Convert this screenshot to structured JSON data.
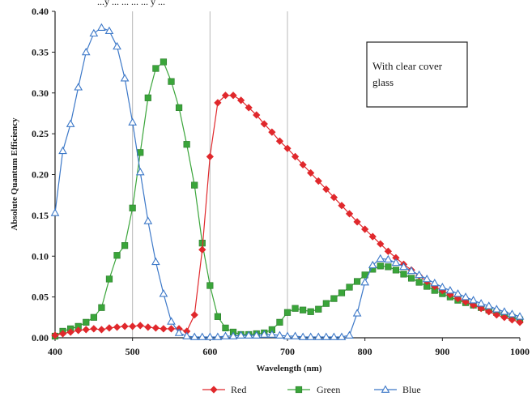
{
  "page": {
    "top_text": "...y ... ... ... ... y ..."
  },
  "chart_data": {
    "type": "line",
    "title": "",
    "xlabel": "Wavelength (nm)",
    "ylabel": "Absolute Quantum Efficiency",
    "xlim": [
      400,
      1000
    ],
    "ylim": [
      0,
      0.4
    ],
    "x_ticks": [
      400,
      500,
      600,
      700,
      800,
      900,
      1000
    ],
    "y_ticks": [
      0.0,
      0.05,
      0.1,
      0.15,
      0.2,
      0.25,
      0.3,
      0.35,
      0.4
    ],
    "y_tick_labels": [
      "0.00",
      "0.05",
      "0.10",
      "0.15",
      "0.20",
      "0.25",
      "0.30",
      "0.35",
      "0.40"
    ],
    "x_tick_labels": [
      "400",
      "500",
      "600",
      "700",
      "800",
      "900",
      "1000"
    ],
    "vertical_gridlines_at": [
      500,
      600,
      700
    ],
    "legend_position": "bottom",
    "annotation": {
      "text_lines": [
        "With clear cover",
        "glass"
      ]
    },
    "series": [
      {
        "name": "Red",
        "color": "#e0282c",
        "marker": "diamond",
        "points": [
          [
            400,
            0.003
          ],
          [
            410,
            0.005
          ],
          [
            420,
            0.007
          ],
          [
            430,
            0.009
          ],
          [
            440,
            0.01
          ],
          [
            450,
            0.011
          ],
          [
            460,
            0.01
          ],
          [
            470,
            0.012
          ],
          [
            480,
            0.013
          ],
          [
            490,
            0.014
          ],
          [
            500,
            0.014
          ],
          [
            510,
            0.015
          ],
          [
            520,
            0.013
          ],
          [
            530,
            0.012
          ],
          [
            540,
            0.011
          ],
          [
            550,
            0.011
          ],
          [
            560,
            0.011
          ],
          [
            570,
            0.008
          ],
          [
            580,
            0.028
          ],
          [
            590,
            0.108
          ],
          [
            600,
            0.222
          ],
          [
            610,
            0.288
          ],
          [
            620,
            0.297
          ],
          [
            630,
            0.297
          ],
          [
            640,
            0.291
          ],
          [
            650,
            0.282
          ],
          [
            660,
            0.273
          ],
          [
            670,
            0.262
          ],
          [
            680,
            0.252
          ],
          [
            690,
            0.241
          ],
          [
            700,
            0.232
          ],
          [
            710,
            0.222
          ],
          [
            720,
            0.212
          ],
          [
            730,
            0.202
          ],
          [
            740,
            0.192
          ],
          [
            750,
            0.182
          ],
          [
            760,
            0.172
          ],
          [
            770,
            0.162
          ],
          [
            780,
            0.152
          ],
          [
            790,
            0.142
          ],
          [
            800,
            0.133
          ],
          [
            810,
            0.124
          ],
          [
            820,
            0.115
          ],
          [
            830,
            0.106
          ],
          [
            840,
            0.098
          ],
          [
            850,
            0.09
          ],
          [
            860,
            0.083
          ],
          [
            870,
            0.076
          ],
          [
            880,
            0.069
          ],
          [
            890,
            0.063
          ],
          [
            900,
            0.058
          ],
          [
            910,
            0.053
          ],
          [
            920,
            0.048
          ],
          [
            930,
            0.044
          ],
          [
            940,
            0.04
          ],
          [
            950,
            0.036
          ],
          [
            960,
            0.032
          ],
          [
            970,
            0.028
          ],
          [
            980,
            0.025
          ],
          [
            990,
            0.022
          ],
          [
            1000,
            0.019
          ]
        ]
      },
      {
        "name": "Green",
        "color": "#3aa53a",
        "marker": "square",
        "points": [
          [
            400,
            0.002
          ],
          [
            410,
            0.008
          ],
          [
            420,
            0.011
          ],
          [
            430,
            0.014
          ],
          [
            440,
            0.019
          ],
          [
            450,
            0.025
          ],
          [
            460,
            0.037
          ],
          [
            470,
            0.072
          ],
          [
            480,
            0.101
          ],
          [
            490,
            0.113
          ],
          [
            500,
            0.159
          ],
          [
            510,
            0.227
          ],
          [
            520,
            0.294
          ],
          [
            530,
            0.33
          ],
          [
            540,
            0.338
          ],
          [
            550,
            0.314
          ],
          [
            560,
            0.282
          ],
          [
            570,
            0.237
          ],
          [
            580,
            0.187
          ],
          [
            590,
            0.116
          ],
          [
            600,
            0.064
          ],
          [
            610,
            0.026
          ],
          [
            620,
            0.012
          ],
          [
            630,
            0.007
          ],
          [
            640,
            0.004
          ],
          [
            650,
            0.004
          ],
          [
            660,
            0.005
          ],
          [
            670,
            0.006
          ],
          [
            680,
            0.01
          ],
          [
            690,
            0.019
          ],
          [
            700,
            0.031
          ],
          [
            710,
            0.036
          ],
          [
            720,
            0.034
          ],
          [
            730,
            0.032
          ],
          [
            740,
            0.035
          ],
          [
            750,
            0.042
          ],
          [
            760,
            0.048
          ],
          [
            770,
            0.055
          ],
          [
            780,
            0.062
          ],
          [
            790,
            0.069
          ],
          [
            800,
            0.077
          ],
          [
            810,
            0.084
          ],
          [
            820,
            0.088
          ],
          [
            830,
            0.087
          ],
          [
            840,
            0.083
          ],
          [
            850,
            0.078
          ],
          [
            860,
            0.073
          ],
          [
            870,
            0.068
          ],
          [
            880,
            0.063
          ],
          [
            890,
            0.058
          ],
          [
            900,
            0.054
          ],
          [
            910,
            0.05
          ],
          [
            920,
            0.046
          ],
          [
            930,
            0.043
          ],
          [
            940,
            0.04
          ],
          [
            950,
            0.037
          ],
          [
            960,
            0.034
          ],
          [
            970,
            0.031
          ],
          [
            980,
            0.028
          ],
          [
            990,
            0.025
          ],
          [
            1000,
            0.022
          ]
        ]
      },
      {
        "name": "Blue",
        "color": "#3c78c8",
        "marker": "triangle",
        "points": [
          [
            400,
            0.153
          ],
          [
            410,
            0.229
          ],
          [
            420,
            0.262
          ],
          [
            430,
            0.307
          ],
          [
            440,
            0.35
          ],
          [
            450,
            0.373
          ],
          [
            460,
            0.38
          ],
          [
            470,
            0.376
          ],
          [
            480,
            0.357
          ],
          [
            490,
            0.318
          ],
          [
            500,
            0.264
          ],
          [
            510,
            0.203
          ],
          [
            520,
            0.143
          ],
          [
            530,
            0.093
          ],
          [
            540,
            0.054
          ],
          [
            550,
            0.02
          ],
          [
            560,
            0.006
          ],
          [
            570,
            0.002
          ],
          [
            580,
            0.001
          ],
          [
            590,
            0.001
          ],
          [
            600,
            0.001
          ],
          [
            610,
            0.001
          ],
          [
            620,
            0.002
          ],
          [
            630,
            0.002
          ],
          [
            640,
            0.003
          ],
          [
            650,
            0.003
          ],
          [
            660,
            0.003
          ],
          [
            670,
            0.004
          ],
          [
            680,
            0.004
          ],
          [
            690,
            0.003
          ],
          [
            700,
            0.002
          ],
          [
            710,
            0.002
          ],
          [
            720,
            0.001
          ],
          [
            730,
            0.001
          ],
          [
            740,
            0.001
          ],
          [
            750,
            0.001
          ],
          [
            760,
            0.001
          ],
          [
            770,
            0.001
          ],
          [
            780,
            0.003
          ],
          [
            790,
            0.03
          ],
          [
            800,
            0.068
          ],
          [
            810,
            0.089
          ],
          [
            820,
            0.097
          ],
          [
            830,
            0.096
          ],
          [
            840,
            0.092
          ],
          [
            850,
            0.087
          ],
          [
            860,
            0.082
          ],
          [
            870,
            0.077
          ],
          [
            880,
            0.072
          ],
          [
            890,
            0.067
          ],
          [
            900,
            0.062
          ],
          [
            910,
            0.058
          ],
          [
            920,
            0.054
          ],
          [
            930,
            0.05
          ],
          [
            940,
            0.046
          ],
          [
            950,
            0.042
          ],
          [
            960,
            0.039
          ],
          [
            970,
            0.035
          ],
          [
            980,
            0.032
          ],
          [
            990,
            0.029
          ],
          [
            1000,
            0.026
          ]
        ]
      }
    ]
  }
}
